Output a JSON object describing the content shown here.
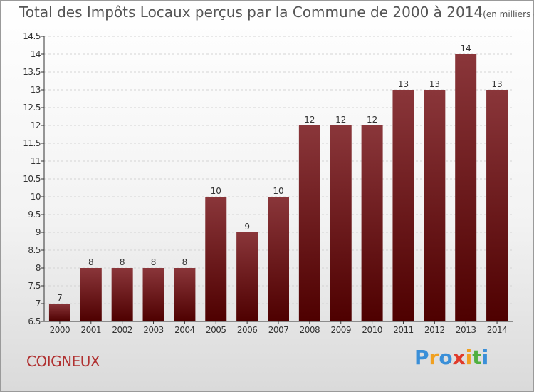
{
  "header": {
    "title": "Total des Impôts Locaux perçus par la Commune de 2000 à 2014",
    "unit": "(en milliers d'€)"
  },
  "commune": "COIGNEUX",
  "brand": {
    "text": "Proxiti",
    "letters": [
      {
        "ch": "P",
        "color": "#3a8fd8"
      },
      {
        "ch": "r",
        "color": "#f0a020"
      },
      {
        "ch": "o",
        "color": "#3a8fd8"
      },
      {
        "ch": "x",
        "color": "#e03a2a"
      },
      {
        "ch": "i",
        "color": "#f0a020"
      },
      {
        "ch": "t",
        "color": "#50b040"
      },
      {
        "ch": "i",
        "color": "#3a8fd8"
      }
    ]
  },
  "colors": {
    "bar_light": "#8a363a",
    "bar_dark": "#4e0000",
    "grid": "#d4d4d4",
    "axis": "#333333",
    "text": "#333333",
    "commune": "#b03030"
  },
  "chart_data": {
    "type": "bar",
    "title": "Total des Impôts Locaux perçus par la Commune de 2000 à 2014",
    "ylabel": "(en milliers d'€)",
    "xlabel": "",
    "categories": [
      "2000",
      "2001",
      "2002",
      "2003",
      "2004",
      "2005",
      "2006",
      "2007",
      "2008",
      "2009",
      "2010",
      "2011",
      "2012",
      "2013",
      "2014"
    ],
    "values": [
      7,
      8,
      8,
      8,
      8,
      10,
      9,
      10,
      12,
      12,
      12,
      13,
      13,
      14,
      13
    ],
    "labels": [
      "7",
      "8",
      "8",
      "8",
      "8",
      "10",
      "9",
      "10",
      "12",
      "12",
      "12",
      "13",
      "13",
      "14",
      "13"
    ],
    "ylim": [
      6.5,
      14.5
    ],
    "yticks": [
      6.5,
      7,
      7.5,
      8,
      8.5,
      9,
      9.5,
      10,
      10.5,
      11,
      11.5,
      12,
      12.5,
      13,
      13.5,
      14,
      14.5
    ],
    "ytick_labels": [
      "6.5",
      "7",
      "7.5",
      "8",
      "8.5",
      "9",
      "9.5",
      "10",
      "10.5",
      "11",
      "11.5",
      "12",
      "12.5",
      "13",
      "13.5",
      "14",
      "14.5"
    ],
    "grid": true,
    "legend": "none"
  }
}
